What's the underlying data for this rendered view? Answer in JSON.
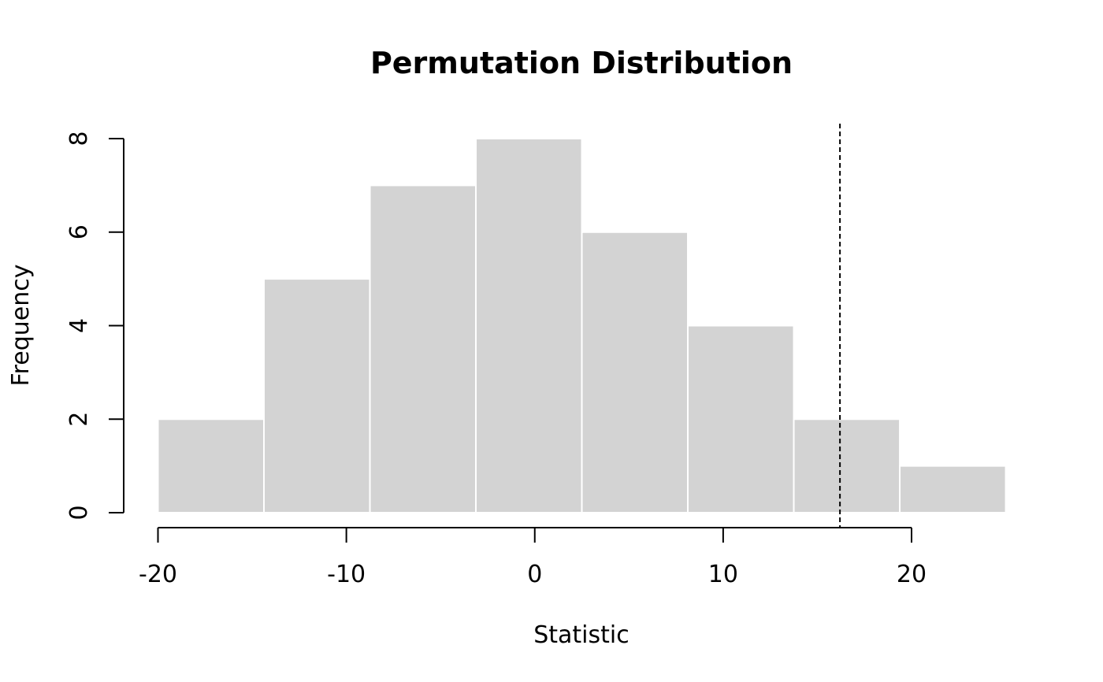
{
  "chart_data": {
    "type": "bar",
    "title": "Permutation Distribution",
    "xlabel": "Statistic",
    "ylabel": "Frequency",
    "bins": [
      {
        "x0": -20.0,
        "x1": -14.375,
        "count": 2
      },
      {
        "x0": -14.375,
        "x1": -8.75,
        "count": 5
      },
      {
        "x0": -8.75,
        "x1": -3.125,
        "count": 7
      },
      {
        "x0": -3.125,
        "x1": 2.5,
        "count": 8
      },
      {
        "x0": 2.5,
        "x1": 8.125,
        "count": 6
      },
      {
        "x0": 8.125,
        "x1": 13.75,
        "count": 4
      },
      {
        "x0": 13.75,
        "x1": 19.375,
        "count": 2
      },
      {
        "x0": 19.375,
        "x1": 25.0,
        "count": 1
      }
    ],
    "observed_statistic": 16.2,
    "xticks": [
      -20,
      -10,
      0,
      10,
      20
    ],
    "xtick_labels": [
      "-20",
      "-10",
      "0",
      "10",
      "20"
    ],
    "yticks": [
      0,
      2,
      4,
      6,
      8
    ],
    "ytick_labels": [
      "0",
      "2",
      "4",
      "6",
      "8"
    ],
    "xlim": [
      -20,
      25
    ],
    "ylim": [
      0,
      8
    ],
    "grid": false,
    "colors": {
      "bar_fill": "#d3d3d3",
      "bar_border": "#ffffff",
      "observed_line": "#000000",
      "axis": "#000000"
    }
  }
}
